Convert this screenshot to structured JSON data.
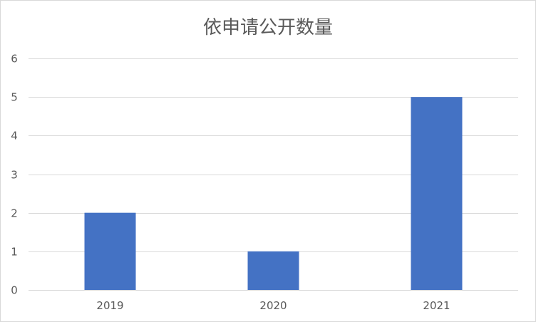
{
  "chart_data": {
    "type": "bar",
    "title": "依申请公开数量",
    "categories": [
      "2019",
      "2020",
      "2021"
    ],
    "values": [
      2,
      1,
      5
    ],
    "ylim": [
      0,
      6
    ],
    "yticks": [
      0,
      1,
      2,
      3,
      4,
      5,
      6
    ],
    "grid": true,
    "bar_color": "#4472C4",
    "grid_color": "#d9d9d9",
    "xlabel": "",
    "ylabel": ""
  }
}
